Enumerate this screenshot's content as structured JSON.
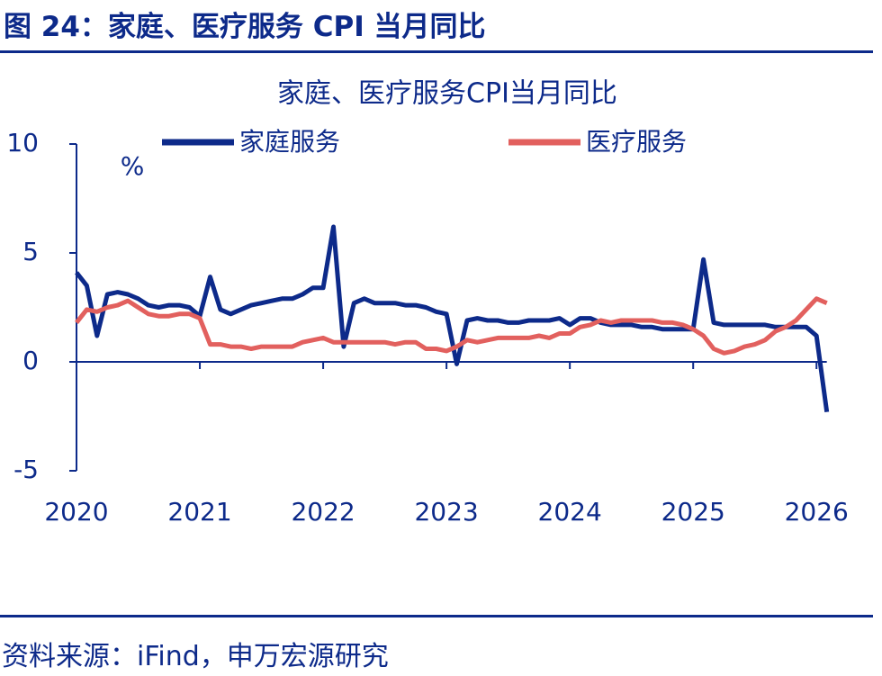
{
  "header": {
    "title": "图 24：家庭、医疗服务 CPI 当月同比"
  },
  "chart_data": {
    "type": "line",
    "title": "家庭、医疗服务CPI当月同比",
    "y_unit": "%",
    "categories": [
      "2020",
      null,
      null,
      null,
      null,
      null,
      null,
      null,
      null,
      null,
      null,
      null,
      "2021",
      null,
      null,
      null,
      null,
      null,
      null,
      null,
      null,
      null,
      null,
      null,
      "2022",
      null,
      null,
      null,
      null,
      null,
      null,
      null,
      null,
      null,
      null,
      null,
      "2023",
      null,
      null,
      null,
      null,
      null,
      null,
      null,
      null,
      null,
      null,
      null,
      "2024",
      null,
      null,
      null,
      null,
      null,
      null,
      null,
      null,
      null,
      null,
      null,
      "2025",
      null,
      null,
      null,
      null,
      null,
      null,
      null,
      null,
      null,
      null,
      null,
      "2026",
      null
    ],
    "series": [
      {
        "name": "家庭服务",
        "color": "#0d2a8a",
        "values": [
          4.1,
          3.5,
          1.2,
          3.1,
          3.2,
          3.1,
          2.9,
          2.6,
          2.5,
          2.6,
          2.6,
          2.5,
          2.1,
          3.9,
          2.4,
          2.2,
          2.4,
          2.6,
          2.7,
          2.8,
          2.9,
          2.9,
          3.1,
          3.4,
          3.4,
          6.2,
          0.7,
          2.7,
          2.9,
          2.7,
          2.7,
          2.7,
          2.6,
          2.6,
          2.5,
          2.3,
          2.2,
          -0.1,
          1.9,
          2.0,
          1.9,
          1.9,
          1.8,
          1.8,
          1.9,
          1.9,
          1.9,
          2.0,
          1.7,
          2.0,
          2.0,
          1.8,
          1.7,
          1.7,
          1.7,
          1.6,
          1.6,
          1.5,
          1.5,
          1.5,
          1.5,
          4.7,
          1.8,
          1.7,
          1.7,
          1.7,
          1.7,
          1.7,
          1.6,
          1.6,
          1.6,
          1.6,
          1.2,
          -2.3
        ]
      },
      {
        "name": "医疗服务",
        "color": "#e2605e",
        "values": [
          1.8,
          2.4,
          2.3,
          2.5,
          2.6,
          2.8,
          2.5,
          2.2,
          2.1,
          2.1,
          2.2,
          2.2,
          2.0,
          0.8,
          0.8,
          0.7,
          0.7,
          0.6,
          0.7,
          0.7,
          0.7,
          0.7,
          0.9,
          1.0,
          1.1,
          0.9,
          0.9,
          0.9,
          0.9,
          0.9,
          0.9,
          0.8,
          0.9,
          0.9,
          0.6,
          0.6,
          0.5,
          0.7,
          1.0,
          0.9,
          1.0,
          1.1,
          1.1,
          1.1,
          1.1,
          1.2,
          1.1,
          1.3,
          1.3,
          1.6,
          1.7,
          1.9,
          1.8,
          1.9,
          1.9,
          1.9,
          1.9,
          1.8,
          1.8,
          1.7,
          1.5,
          1.2,
          0.6,
          0.4,
          0.5,
          0.7,
          0.8,
          1.0,
          1.4,
          1.6,
          1.9,
          2.4,
          2.9,
          2.7
        ]
      }
    ],
    "ylim": [
      -5,
      10
    ],
    "yticks": [
      -5,
      0,
      5,
      10
    ],
    "grid": false
  },
  "footer": {
    "source": "资料来源：iFind，申万宏源研究"
  }
}
